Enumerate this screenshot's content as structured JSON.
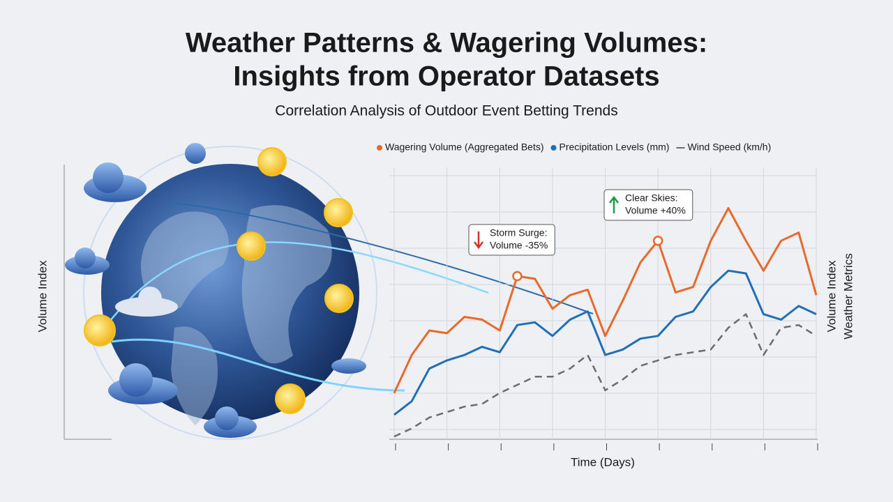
{
  "chart_data": {
    "type": "line",
    "title": [
      "Weather Patterns & Wagering Volumes:",
      "Insights from Operator Datasets"
    ],
    "subtitle": "Correlation Analysis of Outdoor Event Betting Trends",
    "x_label": "Time (Days)",
    "y_label": "Volume Index",
    "y2_label": [
      "Volume Index",
      "Weather Metrics"
    ],
    "categories": [
      null,
      null,
      null,
      null,
      null,
      null,
      null,
      null,
      null,
      null,
      null,
      null,
      null,
      null,
      null,
      null,
      null,
      null,
      null,
      null,
      null,
      null,
      null,
      null,
      null
    ],
    "ylim": [
      0,
      100
    ],
    "grid": true,
    "series": [
      {
        "name": "Wagering Volume (Aggregated Bets)",
        "color": "#e8692a",
        "dash": false,
        "values": [
          17,
          31,
          40,
          39,
          45,
          44,
          40,
          60,
          59,
          48,
          53,
          55,
          38,
          51,
          65,
          73,
          54,
          56,
          73,
          85,
          73,
          62,
          73,
          76,
          53
        ]
      },
      {
        "name": "Precipitation Levels (mm)",
        "color": "#1f6fb8",
        "dash": false,
        "values": [
          9,
          14,
          26,
          29,
          31,
          34,
          32,
          42,
          43,
          38,
          44,
          47,
          31,
          33,
          37,
          38,
          45,
          47,
          56,
          62,
          61,
          46,
          44,
          49,
          46
        ]
      },
      {
        "name": "Wind Speed (km/h)",
        "color": "#6b6b6b",
        "dash": true,
        "values": [
          1,
          4,
          8,
          10,
          12,
          13,
          17,
          20,
          23,
          23,
          26,
          31,
          18,
          22,
          27,
          29,
          31,
          32,
          33,
          41,
          46,
          31,
          41,
          42,
          38
        ]
      }
    ],
    "annotations": [
      {
        "lines": [
          "Storm Surge:",
          "Volume -35%"
        ],
        "color": "#d0342c"
      },
      {
        "lines": [
          "Clear Skies:",
          "Volume +40%"
        ],
        "color": "#1f9a4a"
      }
    ]
  }
}
